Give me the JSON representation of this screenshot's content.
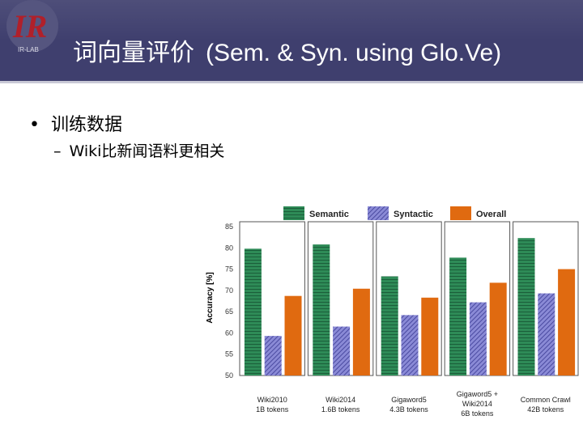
{
  "slide": {
    "title_cn": "词向量评价",
    "title_en": "(Sem. & Syn. using Glo.Ve)",
    "bullet": "训练数据",
    "sub_bullet": "Wiki比新闻语料更相关",
    "bullet_marker": "•",
    "sub_marker": "–"
  },
  "colors": {
    "header_bg": "#3f3f6e",
    "logo_red": "#b0202a",
    "semantic": "#2e8b57",
    "syntactic": "#6f6fc4",
    "overall": "#e06a10"
  },
  "chart_data": {
    "type": "bar",
    "ylabel": "Accuracy [%]",
    "ylim": [
      50,
      85
    ],
    "yticks": [
      "85",
      "80",
      "75",
      "70",
      "65",
      "60",
      "55",
      "50"
    ],
    "categories": [
      [
        "Wiki2010",
        "1B tokens"
      ],
      [
        "Wiki2014",
        "1.6B tokens"
      ],
      [
        "Gigaword5",
        "4.3B tokens"
      ],
      [
        "Gigaword5 +",
        "Wiki2014",
        "6B tokens"
      ],
      [
        "Common Crawl",
        "42B tokens"
      ]
    ],
    "series": [
      {
        "name": "Semantic",
        "values": [
          79.8,
          80.8,
          73.3,
          77.7,
          82.3
        ]
      },
      {
        "name": "Syntactic",
        "values": [
          59.3,
          61.5,
          64.2,
          67.2,
          69.3
        ]
      },
      {
        "name": "Overall",
        "values": [
          68.7,
          70.4,
          68.3,
          71.8,
          75.0
        ]
      }
    ],
    "legend_position": "top",
    "grid": false
  }
}
